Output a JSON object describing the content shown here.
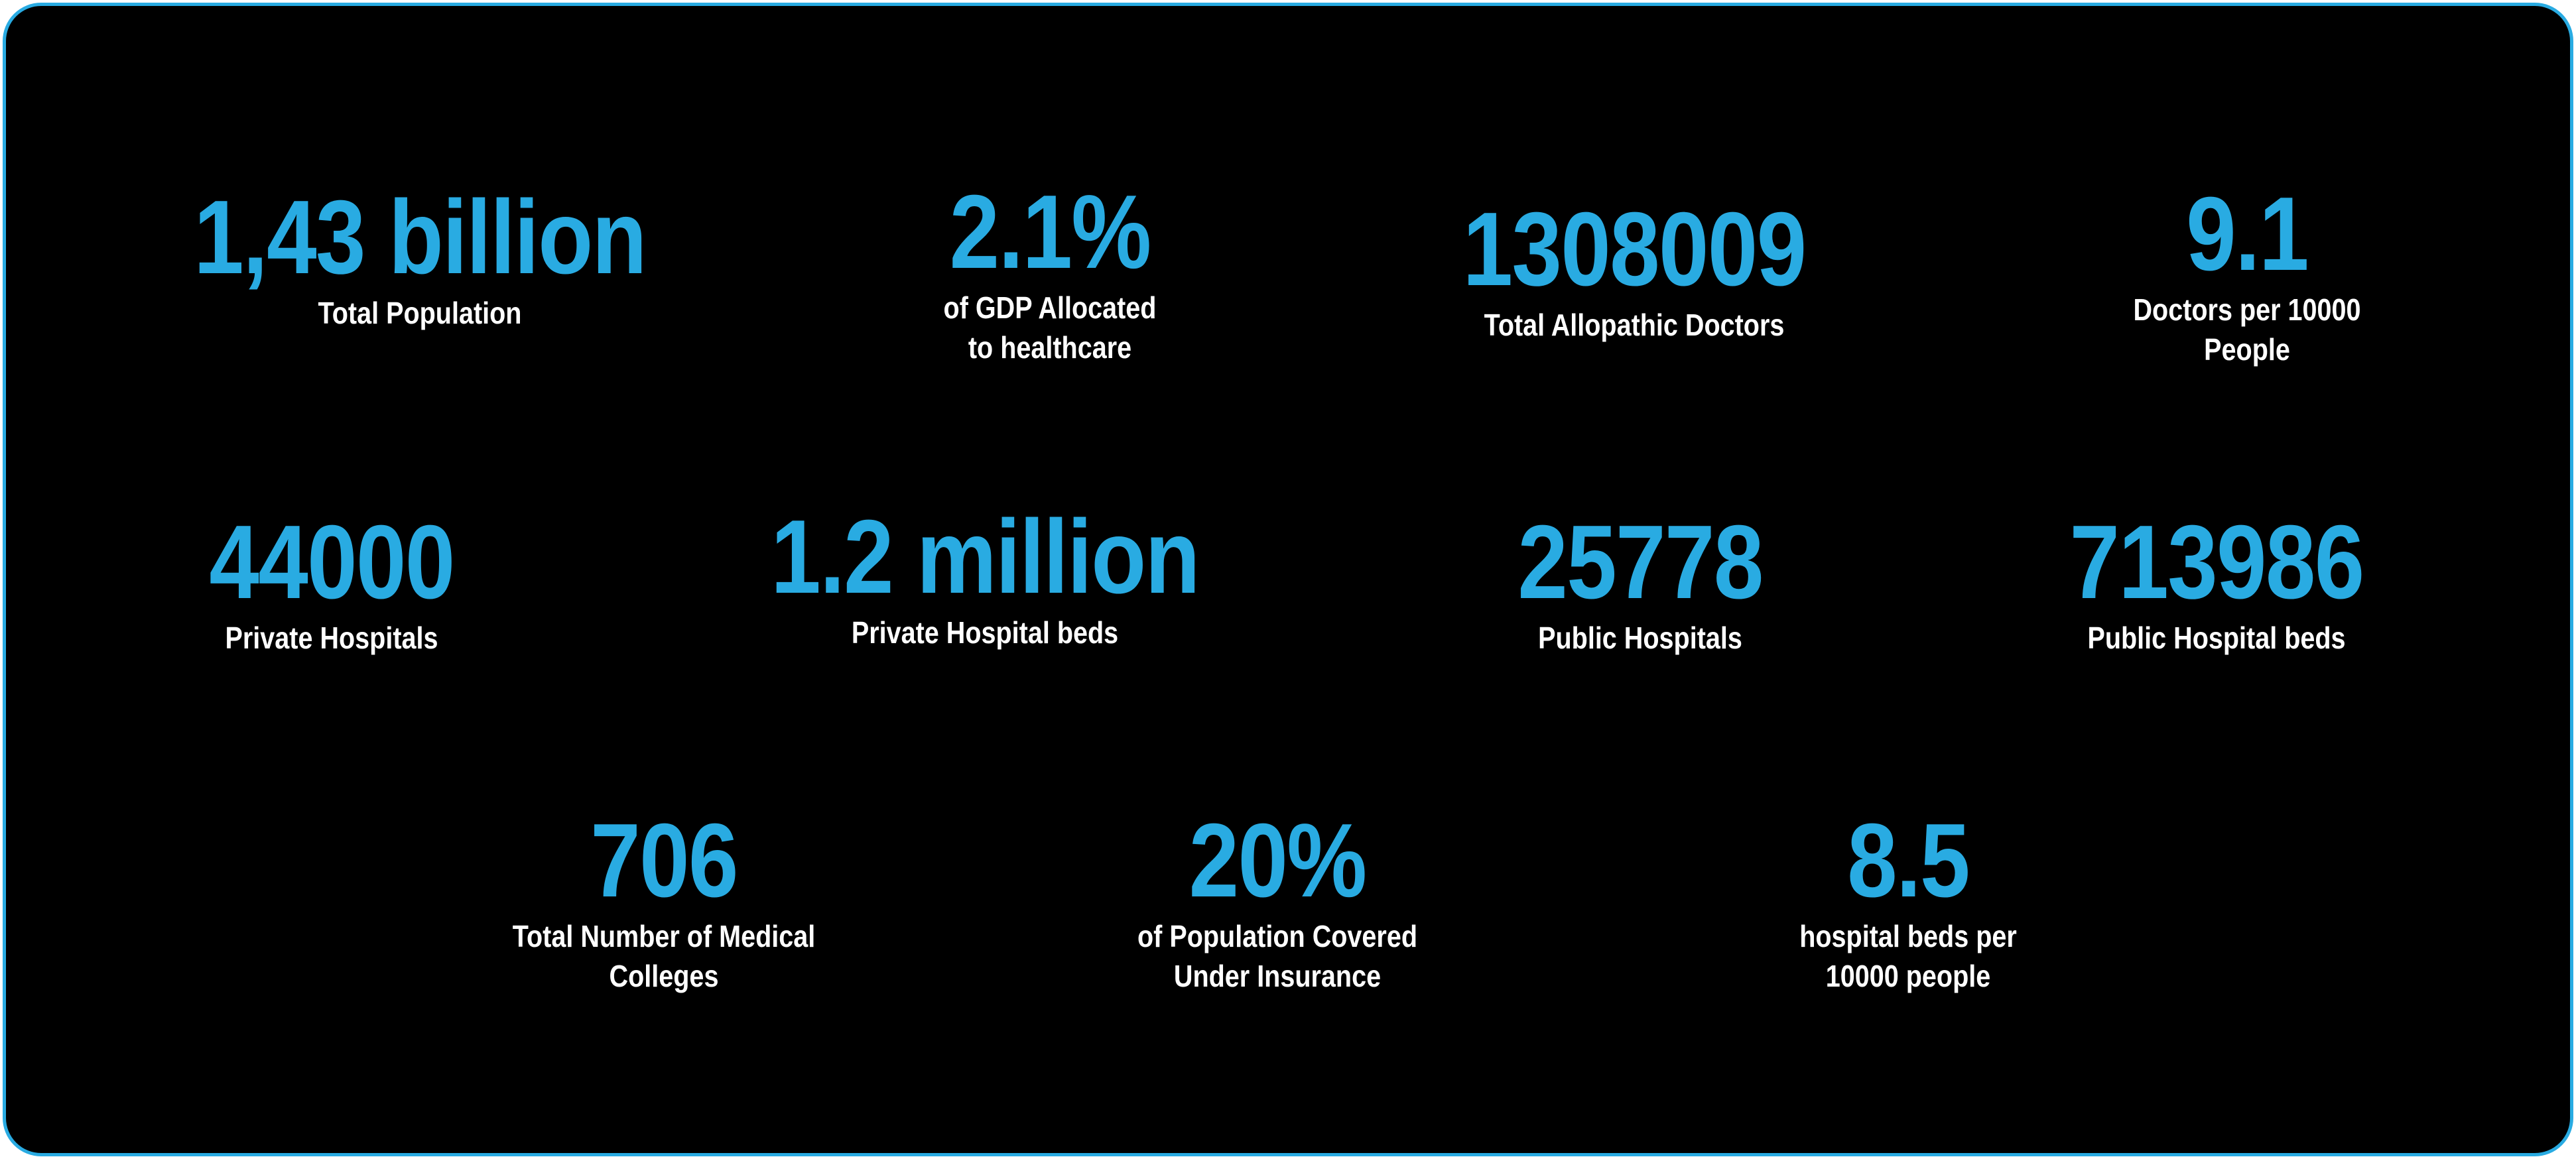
{
  "colors": {
    "accent": "#29abe2",
    "background": "#000000",
    "label": "#ffffff"
  },
  "stats": [
    {
      "value": "1,43 billion",
      "label_lines": [
        "Total Population"
      ]
    },
    {
      "value": "2.1%",
      "label_lines": [
        "of GDP Allocated",
        "to healthcare"
      ]
    },
    {
      "value": "1308009",
      "label_lines": [
        "Total Allopathic Doctors"
      ]
    },
    {
      "value": "9.1",
      "label_lines": [
        "Doctors per 10000",
        "People"
      ]
    },
    {
      "value": "44000",
      "label_lines": [
        "Private Hospitals"
      ]
    },
    {
      "value": "1.2 million",
      "label_lines": [
        "Private Hospital beds"
      ]
    },
    {
      "value": "25778",
      "label_lines": [
        "Public Hospitals"
      ]
    },
    {
      "value": "713986",
      "label_lines": [
        "Public Hospital beds"
      ]
    },
    {
      "value": "706",
      "label_lines": [
        "Total Number of Medical",
        "Colleges"
      ]
    },
    {
      "value": "20%",
      "label_lines": [
        "of Population Covered",
        "Under Insurance"
      ]
    },
    {
      "value": "8.5",
      "label_lines": [
        "hospital beds per",
        "10000 people"
      ]
    }
  ]
}
